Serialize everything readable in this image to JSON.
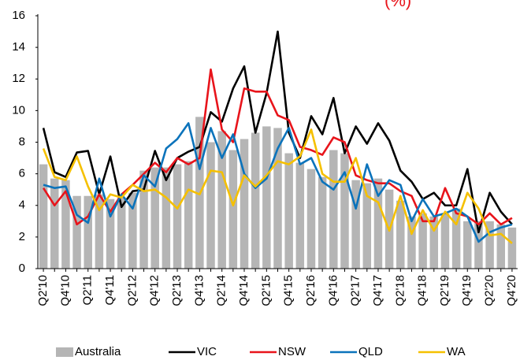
{
  "chart_data": {
    "type": "bar-line",
    "annotation": "(%)",
    "categories": [
      "Q2'10",
      null,
      "Q4'10",
      null,
      "Q2'11",
      null,
      "Q4'11",
      null,
      "Q2'12",
      null,
      "Q4'12",
      null,
      "Q2'13",
      null,
      "Q4'13",
      null,
      "Q2'14",
      null,
      "Q4'14",
      null,
      "Q2'15",
      null,
      "Q4'15",
      null,
      "Q2'16",
      null,
      "Q4'16",
      null,
      "Q2'17",
      null,
      "Q4'17",
      null,
      "Q2'18",
      null,
      "Q4'18",
      null,
      "Q2'19",
      null,
      "Q4'19",
      null,
      "Q2'20",
      null,
      "Q4'20"
    ],
    "series": [
      {
        "name": "Australia",
        "type": "bar",
        "color": "#b5b5b5",
        "values": [
          6.6,
          5.7,
          5.6,
          4.6,
          4.6,
          4.7,
          4.4,
          4.5,
          4.8,
          6.2,
          6.4,
          6.4,
          6.6,
          6.8,
          9.6,
          8.0,
          8.7,
          7.5,
          8.2,
          8.6,
          9.0,
          8.9,
          7.3,
          6.7,
          6.3,
          5.8,
          7.5,
          7.3,
          5.6,
          5.4,
          5.7,
          5.0,
          4.3,
          3.3,
          3.5,
          3.3,
          3.5,
          3.8,
          3.0,
          3.0,
          3.0,
          2.8,
          2.6
        ]
      },
      {
        "name": "VIC",
        "type": "line",
        "color": "#000000",
        "values": [
          8.9,
          6.1,
          5.8,
          7.35,
          7.45,
          4.7,
          7.1,
          3.9,
          4.9,
          5.0,
          7.45,
          5.6,
          7.0,
          7.4,
          7.7,
          9.9,
          9.3,
          11.4,
          12.8,
          8.6,
          11.1,
          15.0,
          8.6,
          7.0,
          9.65,
          8.5,
          10.8,
          7.3,
          9.0,
          7.9,
          9.2,
          8.1,
          6.2,
          5.5,
          4.4,
          4.8,
          4.0,
          4.0,
          6.3,
          2.3,
          4.8,
          3.6,
          2.8
        ]
      },
      {
        "name": "NSW",
        "type": "line",
        "color": "#e8141b",
        "values": [
          5.1,
          4.0,
          4.9,
          2.8,
          3.3,
          4.7,
          3.6,
          4.7,
          5.3,
          6.0,
          6.7,
          6.1,
          7.0,
          6.6,
          7.0,
          12.6,
          8.8,
          8.0,
          11.4,
          11.2,
          11.2,
          9.7,
          9.4,
          7.7,
          7.5,
          7.2,
          8.3,
          8.0,
          5.9,
          5.6,
          5.4,
          5.4,
          4.9,
          4.6,
          3.0,
          3.0,
          5.1,
          3.5,
          3.3,
          2.8,
          3.5,
          2.8,
          3.2
        ]
      },
      {
        "name": "QLD",
        "type": "line",
        "color": "#0b73bb",
        "values": [
          5.3,
          5.1,
          5.2,
          3.4,
          2.9,
          5.7,
          3.3,
          4.7,
          3.8,
          5.9,
          5.2,
          7.6,
          8.2,
          9.2,
          6.3,
          8.9,
          7.0,
          8.5,
          6.0,
          5.1,
          5.7,
          7.6,
          8.9,
          6.6,
          7.0,
          5.5,
          5.0,
          6.1,
          3.8,
          6.6,
          4.6,
          5.6,
          5.3,
          3.0,
          4.4,
          3.3,
          3.5,
          3.8,
          3.3,
          1.7,
          2.3,
          2.6,
          2.8
        ]
      },
      {
        "name": "WA",
        "type": "line",
        "color": "#f5c000",
        "values": [
          7.6,
          5.8,
          5.6,
          7.1,
          5.2,
          3.7,
          4.7,
          4.5,
          5.3,
          4.9,
          5.0,
          4.5,
          3.8,
          5.0,
          4.7,
          6.2,
          6.1,
          4.0,
          5.9,
          5.2,
          5.9,
          6.8,
          6.6,
          7.1,
          8.8,
          6.0,
          5.5,
          5.5,
          7.0,
          4.6,
          4.2,
          2.4,
          4.6,
          2.2,
          3.7,
          2.4,
          3.6,
          2.8,
          4.8,
          3.8,
          2.1,
          2.2,
          1.6
        ]
      }
    ],
    "ylim": [
      0,
      16
    ],
    "yticks": [
      0,
      2,
      4,
      6,
      8,
      10,
      12,
      14,
      16
    ],
    "grid": false,
    "legend": "bottom"
  }
}
